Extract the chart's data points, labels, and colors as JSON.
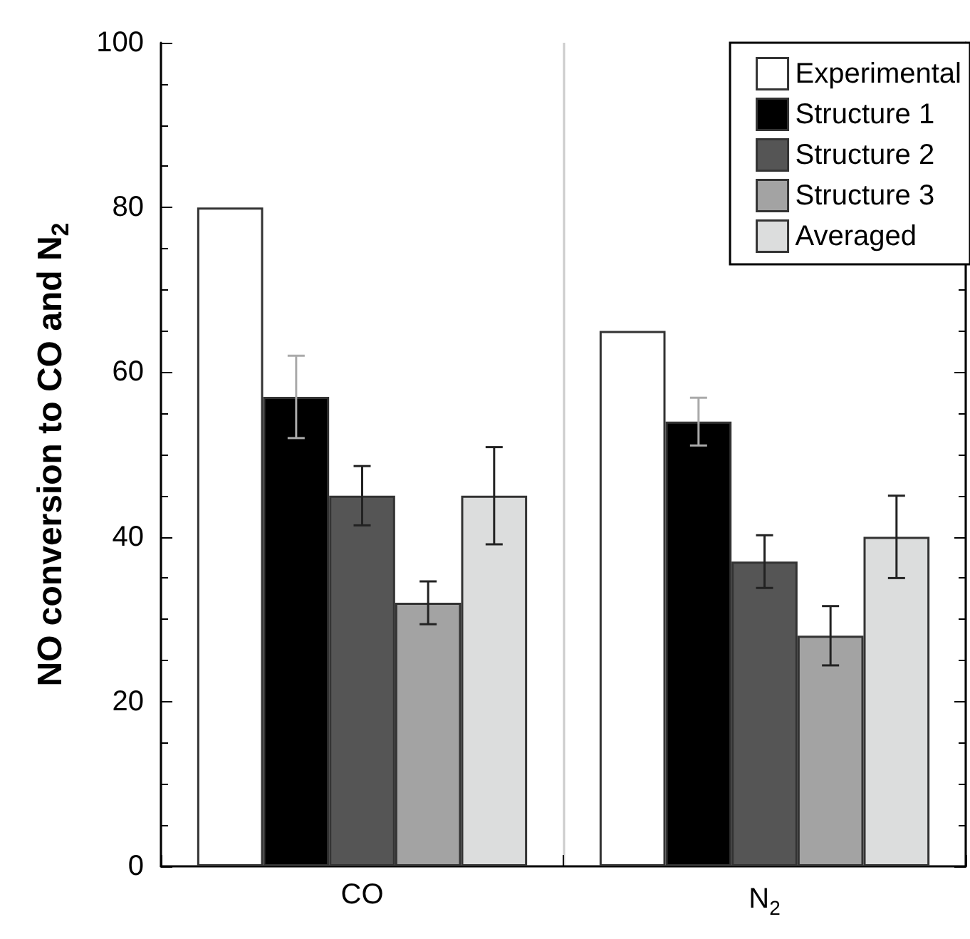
{
  "chart_data": {
    "type": "bar",
    "ylabel": "NO conversion to CO and N$_{2}$",
    "categories": [
      "CO",
      "N$_{2}$"
    ],
    "series": [
      {
        "name": "Experimental",
        "color": "#ffffff",
        "values": [
          80,
          65
        ]
      },
      {
        "name": "Structure 1",
        "color": "#000000",
        "values": [
          57,
          54
        ],
        "errors": [
          5,
          2.9
        ]
      },
      {
        "name": "Structure 2",
        "color": "#555555",
        "values": [
          45,
          37
        ],
        "errors": [
          3.6,
          3.2
        ]
      },
      {
        "name": "Structure 3",
        "color": "#a3a3a3",
        "values": [
          32,
          28
        ],
        "errors": [
          2.6,
          3.6
        ]
      },
      {
        "name": "Averaged",
        "color": "#dcdddd",
        "values": [
          45,
          40
        ],
        "errors": [
          5.9,
          5
        ]
      }
    ],
    "ylim": [
      0,
      100
    ],
    "yticks": [
      0,
      20,
      40,
      60,
      80,
      100
    ],
    "grid": "x",
    "legend": "top right"
  }
}
